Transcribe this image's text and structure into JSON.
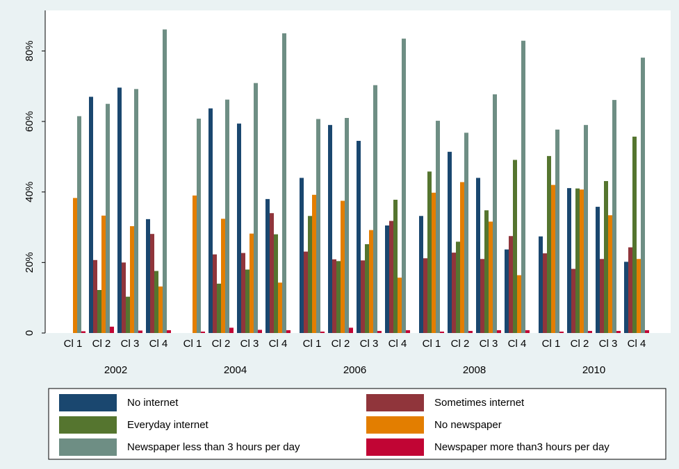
{
  "chart_data": {
    "type": "bar",
    "groups": [
      "2002",
      "2004",
      "2006",
      "2008",
      "2010"
    ],
    "categories": [
      "Cl 1",
      "Cl 2",
      "Cl 3",
      "Cl 4",
      "Cl 1",
      "Cl 2",
      "Cl 3",
      "Cl 4",
      "Cl 1",
      "Cl 2",
      "Cl 3",
      "Cl 4",
      "Cl 1",
      "Cl 2",
      "Cl 3",
      "Cl 4",
      "Cl 1",
      "Cl 2",
      "Cl 3",
      "Cl 4"
    ],
    "series": [
      {
        "name": "No internet",
        "color": "#1a476f",
        "values": [
          null,
          67,
          69.6,
          32.3,
          null,
          63.7,
          59.4,
          38,
          44,
          59,
          54.5,
          30.5,
          33.2,
          51.4,
          44,
          23.7,
          27.4,
          41.1,
          35.8,
          20.2
        ]
      },
      {
        "name": "Sometimes internet",
        "color": "#90353b",
        "values": [
          null,
          20.7,
          20,
          28.1,
          null,
          22.3,
          22.7,
          34,
          23.1,
          20.9,
          20.6,
          31.8,
          21.2,
          22.8,
          21,
          27.5,
          22.6,
          18.2,
          21,
          24.3
        ]
      },
      {
        "name": "Everyday internet",
        "color": "#55752f",
        "values": [
          null,
          12.2,
          10.3,
          17.6,
          null,
          14,
          18,
          28,
          33.2,
          20.4,
          25.2,
          37.8,
          45.8,
          25.9,
          34.8,
          49.1,
          50.2,
          41,
          43.1,
          55.7
        ]
      },
      {
        "name": "No newspaper",
        "color": "#e37e00",
        "values": [
          38.3,
          33.3,
          30.3,
          13.2,
          39,
          32.4,
          28.2,
          14.3,
          39.2,
          37.5,
          29.2,
          15.7,
          39.8,
          42.8,
          31.6,
          16.4,
          42,
          40.7,
          33.4,
          21
        ]
      },
      {
        "name": "Newspaper less than 3 hours per day",
        "color": "#6e8e84",
        "values": [
          61.5,
          65,
          69.2,
          86.1,
          60.8,
          66.2,
          70.9,
          85,
          60.7,
          61,
          70.3,
          83.5,
          60.2,
          56.8,
          67.7,
          82.9,
          57.7,
          59,
          66.1,
          78.1
        ]
      },
      {
        "name": "Newspaper more than3 hours per day",
        "color": "#c10534",
        "values": [
          0.5,
          1.8,
          0.7,
          0.8,
          0.4,
          1.5,
          0.9,
          0.8,
          0.4,
          1.5,
          0.6,
          0.8,
          0.4,
          0.6,
          0.8,
          0.8,
          0.4,
          0.6,
          0.6,
          0.8
        ]
      }
    ],
    "ylim": [
      0,
      91.5
    ],
    "yticks": [
      {
        "value": 0,
        "label": "0"
      },
      {
        "value": 20,
        "label": "20%"
      },
      {
        "value": 40,
        "label": "40%"
      },
      {
        "value": 60,
        "label": "60%"
      },
      {
        "value": 80,
        "label": "80%"
      }
    ],
    "grid": false
  }
}
